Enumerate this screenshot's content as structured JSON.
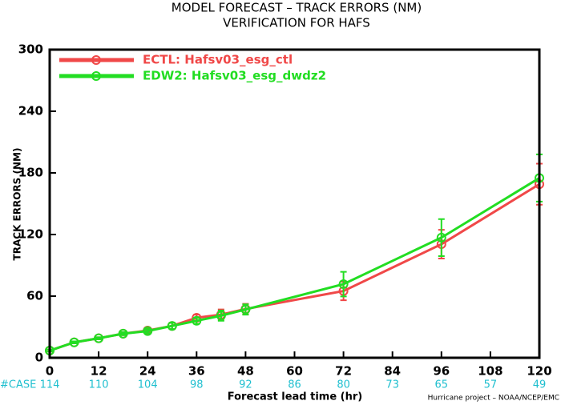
{
  "chart_data": {
    "type": "line",
    "title": "MODEL FORECAST – TRACK ERRORS (NM)",
    "subtitle": "VERIFICATION FOR HAFS",
    "x_label": "Forecast lead time (hr)",
    "y_label": "TRACK ERRORS (NM)",
    "footer": "Hurricane project – NOAA/NCEP/EMC",
    "case_label": "#CASE",
    "case_x": [
      0,
      12,
      24,
      36,
      48,
      60,
      72,
      84,
      96,
      108,
      120
    ],
    "case_counts": [
      114,
      110,
      104,
      98,
      92,
      86,
      80,
      73,
      65,
      57,
      49
    ],
    "case_color": "#1fbfcf",
    "x": [
      0,
      6,
      12,
      18,
      24,
      30,
      36,
      42,
      48,
      72,
      96,
      120
    ],
    "series": [
      {
        "name": "ECTL: Hafsv03_esg_ctl",
        "color": "#f04848",
        "values": [
          7,
          15,
          19,
          23.5,
          26.5,
          31,
          39,
          42,
          47.5,
          65,
          110.6,
          169
        ],
        "errors": [
          1,
          1,
          1,
          1.5,
          2,
          3,
          3,
          5,
          5,
          9,
          14,
          20
        ]
      },
      {
        "name": "EDW2: Hafsv03_esg_dwdz2",
        "color": "#22dd22",
        "values": [
          7,
          15,
          19,
          23.5,
          26,
          31,
          36,
          41,
          47,
          71.7,
          117,
          175
        ],
        "errors": [
          1,
          1,
          1,
          1.5,
          2,
          3,
          3,
          5,
          5,
          12,
          18,
          23
        ]
      }
    ],
    "xlim": [
      0,
      120
    ],
    "xticks": [
      0,
      12,
      24,
      36,
      48,
      60,
      72,
      84,
      96,
      108,
      120
    ],
    "ylim": [
      0,
      300
    ],
    "yticks": [
      0,
      60,
      120,
      180,
      240,
      300
    ],
    "legend": "upper left"
  }
}
